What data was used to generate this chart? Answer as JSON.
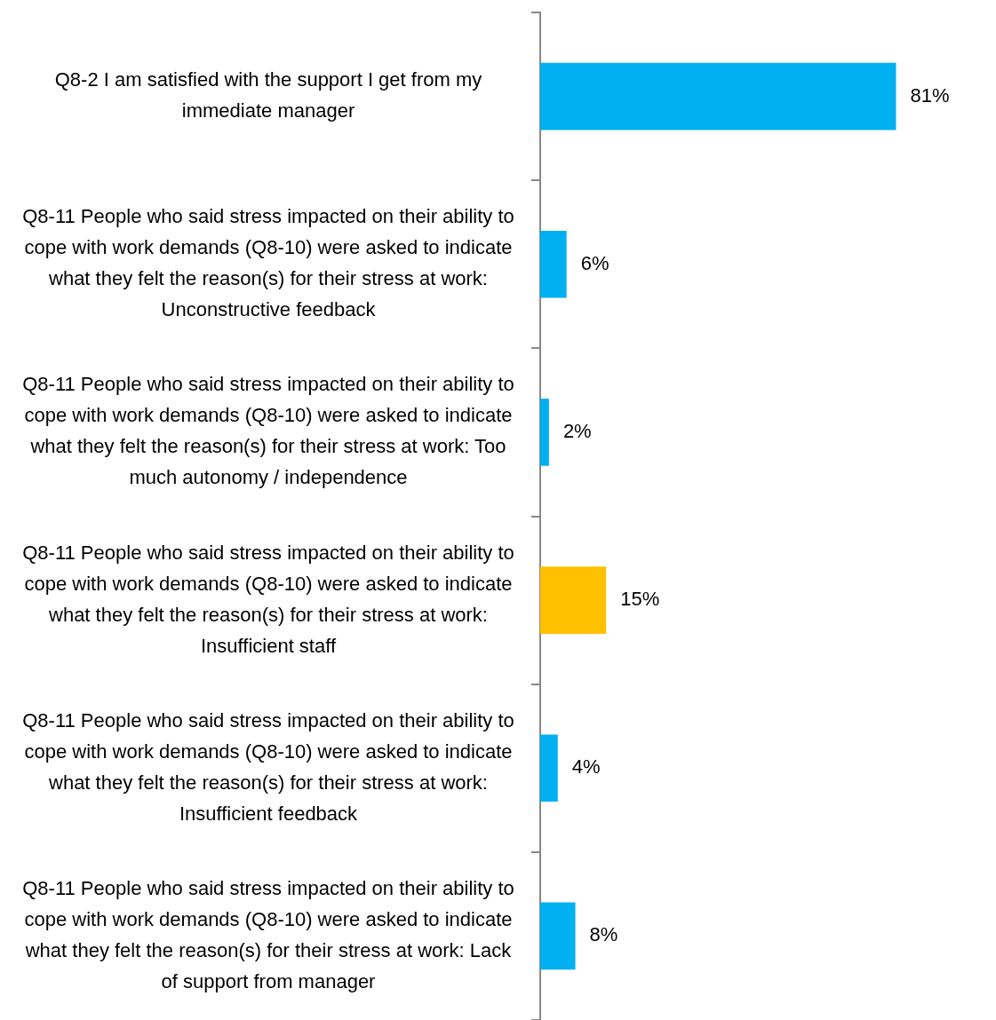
{
  "chart_data": {
    "type": "bar",
    "orientation": "horizontal",
    "categories": [
      "Q8-2 I am satisfied with the support I get from my immediate manager",
      "Q8-11 People who said stress impacted on their ability to cope with work demands (Q8-10) were asked to indicate what they felt the reason(s) for their stress at work: Unconstructive feedback",
      "Q8-11 People who said stress impacted on their ability to cope with work demands (Q8-10) were asked to indicate what they felt the reason(s) for their stress at work: Too much autonomy / independence",
      "Q8-11 People who said stress impacted on their ability to cope with work demands (Q8-10) were asked to indicate what they felt the reason(s) for their stress at work: Insufficient staff",
      "Q8-11 People who said stress impacted on their ability to cope with work demands (Q8-10) were asked to indicate what they felt the reason(s) for their stress at work: Insufficient feedback",
      "Q8-11 People who said stress impacted on their ability to cope with work demands (Q8-10) were asked to indicate what they felt the reason(s) for their stress at work: Lack of support from manager"
    ],
    "values": [
      81,
      6,
      2,
      15,
      4,
      8
    ],
    "colors": [
      "#00b0f0",
      "#00b0f0",
      "#00b0f0",
      "#ffc000",
      "#00b0f0",
      "#00b0f0"
    ],
    "value_labels": [
      "81%",
      "6%",
      "2%",
      "15%",
      "4%",
      "8%"
    ],
    "tick_labels": "y",
    "grid": false,
    "legend": false
  }
}
